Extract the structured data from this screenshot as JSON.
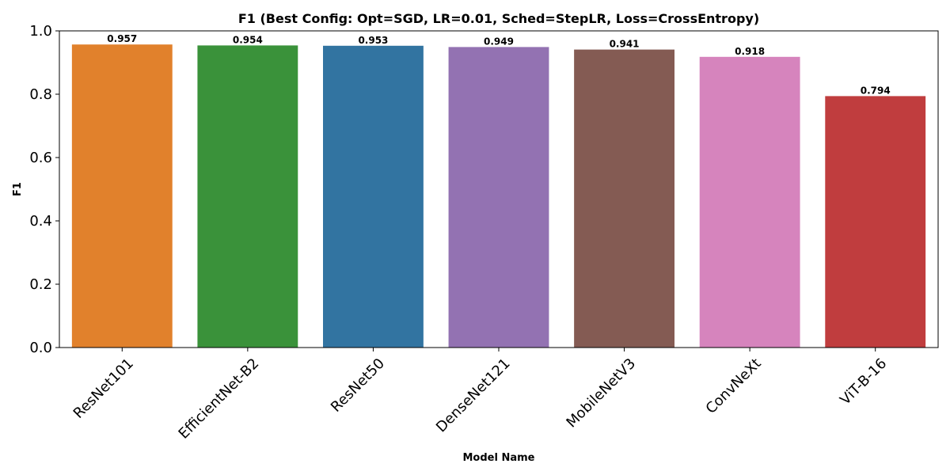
{
  "chart_data": {
    "type": "bar",
    "title": "F1 (Best Config: Opt=SGD, LR=0.01, Sched=StepLR, Loss=CrossEntropy)",
    "xlabel": "Model Name",
    "ylabel": "F1",
    "categories": [
      "ResNet101",
      "EfficientNet-B2",
      "ResNet50",
      "DenseNet121",
      "MobileNetV3",
      "ConvNeXt",
      "ViT-B-16"
    ],
    "values": [
      0.957,
      0.954,
      0.953,
      0.949,
      0.941,
      0.918,
      0.794
    ],
    "data_labels": [
      "0.957",
      "0.954",
      "0.953",
      "0.949",
      "0.941",
      "0.918",
      "0.794"
    ],
    "colors": [
      "#e1812c",
      "#3a923a",
      "#3274a1",
      "#9372b2",
      "#845b53",
      "#d684bd",
      "#c03d3e"
    ],
    "ylim": [
      0,
      1.0
    ],
    "yticks": [
      0.0,
      0.2,
      0.4,
      0.6,
      0.8,
      1.0
    ],
    "ytick_labels": [
      "0.0",
      "0.2",
      "0.4",
      "0.6",
      "0.8",
      "1.0"
    ],
    "grid": false,
    "legend": "none"
  }
}
